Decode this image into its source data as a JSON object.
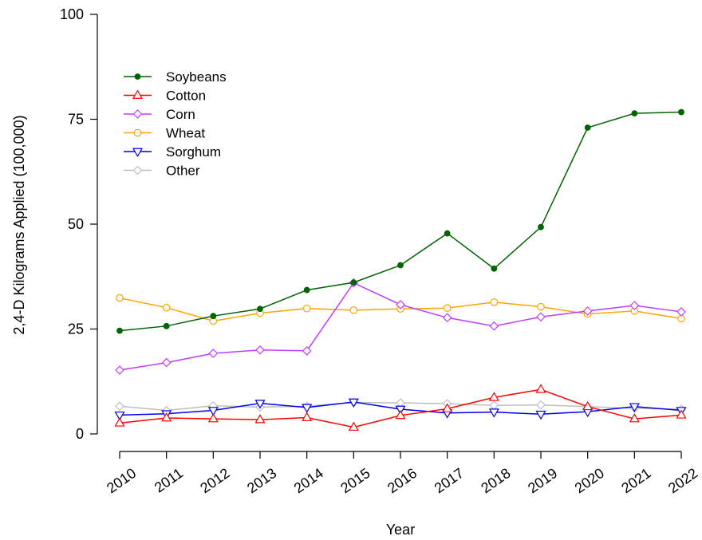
{
  "chart_data": {
    "type": "line",
    "title": "",
    "xlabel": "Year",
    "ylabel": "2,4-D Kilograms Applied (100,000)",
    "x": [
      2010,
      2011,
      2012,
      2013,
      2014,
      2015,
      2016,
      2017,
      2018,
      2019,
      2020,
      2021,
      2022
    ],
    "x_tick_labels": [
      "2010",
      "2011",
      "2012",
      "2013",
      "2014",
      "2015",
      "2016",
      "2017",
      "2018",
      "2019",
      "2020",
      "2021",
      "2022"
    ],
    "ylim": [
      0,
      100
    ],
    "y_ticks": [
      0,
      25,
      50,
      75,
      100
    ],
    "y_tick_labels": [
      "0",
      "25",
      "50",
      "75",
      "100"
    ],
    "grid": false,
    "legend_position": "top-left",
    "series": [
      {
        "name": "Soybeans",
        "color": "#006400",
        "marker": "filled-circle",
        "values": [
          24.6,
          25.7,
          28.1,
          29.8,
          34.3,
          36.1,
          40.2,
          47.8,
          39.4,
          49.3,
          73.0,
          76.4,
          76.7
        ]
      },
      {
        "name": "Cotton",
        "color": "#ff0000",
        "marker": "triangle-up",
        "values": [
          2.6,
          3.8,
          3.6,
          3.4,
          3.9,
          1.6,
          4.4,
          6.0,
          8.7,
          10.6,
          6.5,
          3.6,
          4.5
        ]
      },
      {
        "name": "Corn",
        "color": "#bf3eff",
        "marker": "diamond",
        "values": [
          15.2,
          17.0,
          19.2,
          20.0,
          19.8,
          36.0,
          30.8,
          27.7,
          25.7,
          27.9,
          29.3,
          30.6,
          29.1
        ]
      },
      {
        "name": "Wheat",
        "color": "#ffa500",
        "marker": "circle",
        "values": [
          32.4,
          30.1,
          26.9,
          28.8,
          29.9,
          29.5,
          29.8,
          30.0,
          31.4,
          30.3,
          28.6,
          29.3,
          27.5
        ]
      },
      {
        "name": "Sorghum",
        "color": "#0000ee",
        "marker": "triangle-down",
        "values": [
          4.5,
          4.8,
          5.6,
          7.3,
          6.3,
          7.6,
          5.9,
          5.0,
          5.2,
          4.7,
          5.3,
          6.5,
          5.6
        ]
      },
      {
        "name": "Other",
        "color": "#bebebe",
        "marker": "diamond",
        "values": [
          6.6,
          5.6,
          6.7,
          6.4,
          6.6,
          7.5,
          7.4,
          7.2,
          6.8,
          6.9,
          6.5,
          6.1,
          5.9
        ]
      }
    ]
  }
}
